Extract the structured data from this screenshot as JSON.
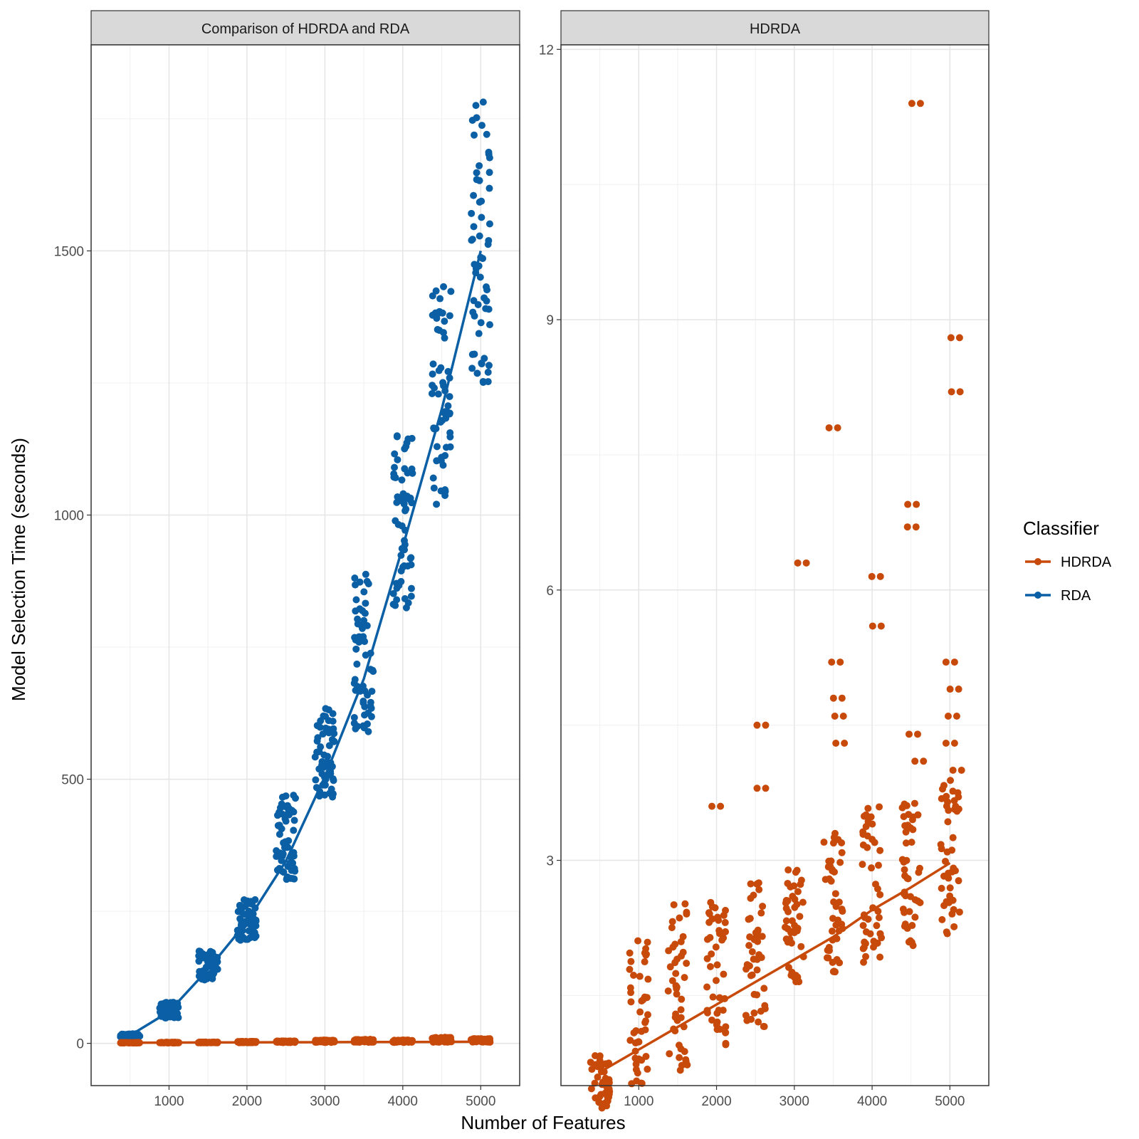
{
  "chart_data": [
    {
      "type": "scatter",
      "panel_title": "Comparison of HDRDA and RDA",
      "xlabel": "Number of Features",
      "ylabel": "Model Selection Time (seconds)",
      "xlim": [
        0,
        5500
      ],
      "ylim": [
        -80,
        1890
      ],
      "x_ticks": [
        1000,
        2000,
        3000,
        4000,
        5000
      ],
      "y_ticks": [
        0,
        500,
        1000,
        1500
      ],
      "grid": true,
      "series": [
        {
          "name": "HDRDA",
          "color": "#c84a0a",
          "trend_x": [
            500,
            1000,
            1500,
            2000,
            2500,
            3000,
            3500,
            4000,
            4500,
            5000
          ],
          "trend_y": [
            1.2,
            1.4,
            1.6,
            1.8,
            2.0,
            2.2,
            2.4,
            2.6,
            2.8,
            3.0
          ],
          "points": [
            {
              "x": 500,
              "min": 0.8,
              "max": 1.5
            },
            {
              "x": 1000,
              "min": 0.9,
              "max": 2.1
            },
            {
              "x": 1500,
              "min": 1.1,
              "max": 2.5
            },
            {
              "x": 2000,
              "min": 1.3,
              "max": 3.6
            },
            {
              "x": 2500,
              "min": 1.6,
              "max": 4.5
            },
            {
              "x": 3000,
              "min": 1.7,
              "max": 6.3
            },
            {
              "x": 3500,
              "min": 1.8,
              "max": 7.8
            },
            {
              "x": 4000,
              "min": 1.9,
              "max": 6.1
            },
            {
              "x": 4500,
              "min": 2.1,
              "max": 11.4
            },
            {
              "x": 5000,
              "min": 2.2,
              "max": 8.8
            }
          ]
        },
        {
          "name": "RDA",
          "color": "#0b5fa5",
          "trend_x": [
            500,
            1000,
            1500,
            2000,
            2500,
            3000,
            3500,
            4000,
            4500,
            5000
          ],
          "trend_y": [
            15,
            60,
            140,
            230,
            345,
            505,
            690,
            940,
            1200,
            1500
          ],
          "points": [
            {
              "x": 500,
              "min": 10,
              "max": 18
            },
            {
              "x": 1000,
              "min": 48,
              "max": 78
            },
            {
              "x": 1500,
              "min": 120,
              "max": 175
            },
            {
              "x": 2000,
              "min": 195,
              "max": 275
            },
            {
              "x": 2500,
              "min": 310,
              "max": 470
            },
            {
              "x": 3000,
              "min": 465,
              "max": 640
            },
            {
              "x": 3500,
              "min": 590,
              "max": 910
            },
            {
              "x": 4000,
              "min": 820,
              "max": 1160
            },
            {
              "x": 4500,
              "min": 1020,
              "max": 1450
            },
            {
              "x": 5000,
              "min": 1250,
              "max": 1800
            }
          ]
        }
      ]
    },
    {
      "type": "scatter",
      "panel_title": "HDRDA",
      "xlabel": "Number of Features",
      "ylabel": "",
      "xlim": [
        0,
        5500
      ],
      "ylim": [
        0.5,
        12.05
      ],
      "x_ticks": [
        1000,
        2000,
        3000,
        4000,
        5000
      ],
      "y_ticks": [
        3,
        6,
        9,
        12
      ],
      "grid": true,
      "series": [
        {
          "name": "HDRDA",
          "color": "#c84a0a",
          "trend_x": [
            500,
            1000,
            1500,
            2000,
            2500,
            3000,
            3500,
            4000,
            4500,
            5000
          ],
          "trend_y": [
            0.65,
            0.9,
            1.15,
            1.4,
            1.65,
            1.9,
            2.15,
            2.45,
            2.7,
            2.97
          ],
          "cluster_ranges": [
            {
              "x": 500,
              "min": 0.25,
              "max": 0.85
            },
            {
              "x": 1000,
              "min": 0.4,
              "max": 2.15
            },
            {
              "x": 1500,
              "min": 0.65,
              "max": 2.6
            },
            {
              "x": 2000,
              "min": 0.95,
              "max": 2.55
            },
            {
              "x": 2500,
              "min": 1.15,
              "max": 2.8
            },
            {
              "x": 3000,
              "min": 1.65,
              "max": 2.9
            },
            {
              "x": 3500,
              "min": 1.75,
              "max": 3.35
            },
            {
              "x": 4000,
              "min": 1.85,
              "max": 3.6
            },
            {
              "x": 4500,
              "min": 2.05,
              "max": 3.7
            },
            {
              "x": 5000,
              "min": 2.15,
              "max": 3.9
            }
          ],
          "outliers": [
            {
              "x": 2000,
              "y": 3.6
            },
            {
              "x": 2500,
              "y": 4.5
            },
            {
              "x": 2500,
              "y": 3.8
            },
            {
              "x": 3000,
              "y": 6.3
            },
            {
              "x": 3500,
              "y": 7.8
            },
            {
              "x": 3500,
              "y": 5.2
            },
            {
              "x": 3500,
              "y": 4.8
            },
            {
              "x": 3500,
              "y": 4.6
            },
            {
              "x": 3500,
              "y": 4.3
            },
            {
              "x": 4000,
              "y": 6.15
            },
            {
              "x": 4000,
              "y": 5.6
            },
            {
              "x": 4500,
              "y": 11.4
            },
            {
              "x": 4500,
              "y": 6.95
            },
            {
              "x": 4500,
              "y": 6.7
            },
            {
              "x": 4500,
              "y": 4.4
            },
            {
              "x": 4500,
              "y": 4.1
            },
            {
              "x": 5000,
              "y": 8.8
            },
            {
              "x": 5000,
              "y": 8.2
            },
            {
              "x": 5000,
              "y": 5.2
            },
            {
              "x": 5000,
              "y": 4.9
            },
            {
              "x": 5000,
              "y": 4.6
            },
            {
              "x": 5000,
              "y": 4.3
            },
            {
              "x": 5000,
              "y": 4.0
            }
          ]
        }
      ]
    }
  ],
  "legend": {
    "title": "Classifier",
    "placement": "right",
    "items": [
      {
        "label": "HDRDA",
        "color": "#c84a0a"
      },
      {
        "label": "RDA",
        "color": "#0b5fa5"
      }
    ]
  },
  "axis_titles": {
    "x": "Number of Features",
    "y": "Model Selection Time (seconds)"
  },
  "style": {
    "strip_fill": "#d9d9d9",
    "grid_major": "#e5e5e5",
    "grid_minor": "#f0f0f0",
    "panel_border": "#333333"
  }
}
